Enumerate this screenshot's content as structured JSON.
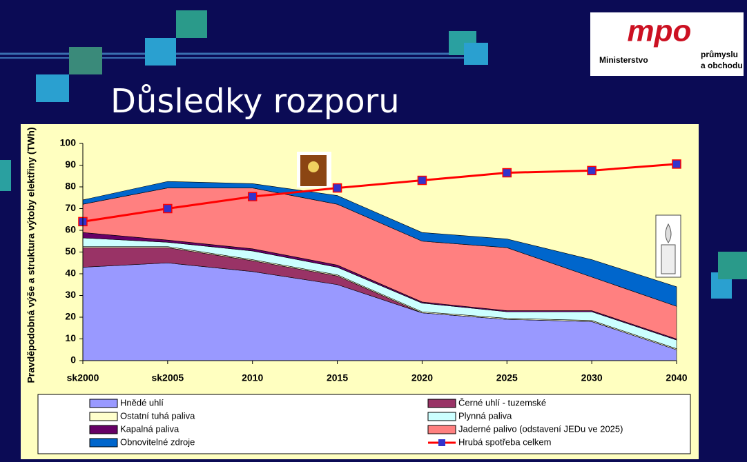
{
  "slide": {
    "title": "Důsledky rozporu",
    "logo": {
      "mark": "mpo",
      "lines": [
        "Ministerstvo",
        "průmyslu",
        "a obchodu"
      ]
    }
  },
  "chart_data": {
    "type": "area",
    "stacked": true,
    "ylabel": "Pravděpodobná výše a struktura výtoby elektřiny (TWh)",
    "categories": [
      "sk2000",
      "sk2005",
      "2010",
      "2015",
      "2020",
      "2025",
      "2030",
      "2040"
    ],
    "ylim": [
      0,
      100
    ],
    "yticks": [
      0,
      10,
      20,
      30,
      40,
      50,
      60,
      70,
      80,
      90,
      100
    ],
    "series": [
      {
        "name": "Hnědé uhlí",
        "color": "#9999ff",
        "values": [
          43,
          45,
          41,
          35,
          22,
          19,
          18,
          5
        ]
      },
      {
        "name": "Černé uhlí - tuzemské",
        "color": "#993366",
        "values": [
          9,
          7,
          5,
          4,
          0,
          0,
          0,
          0
        ]
      },
      {
        "name": "Ostatní tuhá paliva",
        "color": "#ffffcc",
        "values": [
          0.5,
          0.5,
          0.5,
          0.5,
          0.5,
          0.5,
          0.5,
          0.5
        ]
      },
      {
        "name": "Plynná paliva",
        "color": "#ccffff",
        "values": [
          4,
          2,
          4,
          3.5,
          4,
          3,
          4,
          4
        ]
      },
      {
        "name": "Kapalná paliva",
        "color": "#660066",
        "values": [
          2.5,
          1,
          1,
          1,
          0.5,
          0.5,
          0.5,
          0.5
        ]
      },
      {
        "name": "Jaderné palivo (odstavení JEDu ve 2025)",
        "color": "#ff8080",
        "values": [
          13,
          24,
          28,
          28,
          28,
          29,
          15.5,
          15
        ]
      },
      {
        "name": "Obnovitelné zdroje",
        "color": "#0066cc",
        "values": [
          2,
          3,
          2,
          4,
          4,
          4,
          8,
          9
        ]
      },
      {
        "name": "Hrubá spotřeba celkem",
        "type": "line",
        "color": "#ff0000",
        "marker_color": "#3333cc",
        "values": [
          64,
          70,
          75.5,
          79.5,
          83,
          86.5,
          87.5,
          90.5
        ]
      }
    ]
  }
}
